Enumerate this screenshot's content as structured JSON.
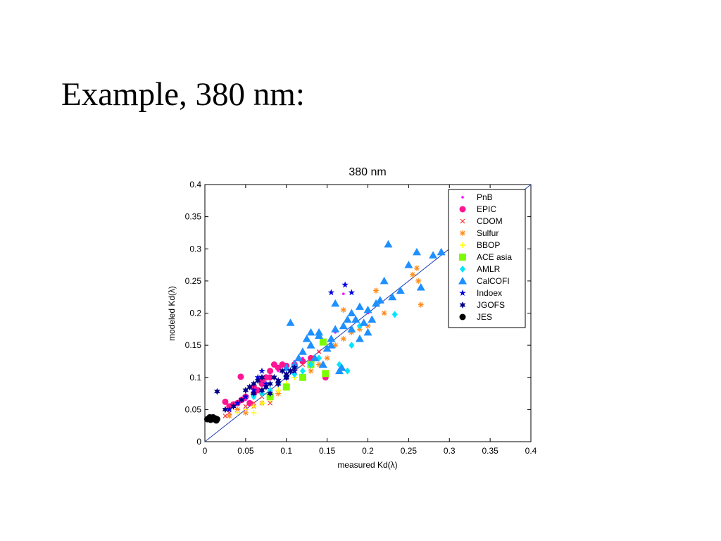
{
  "slide": {
    "title": "Example, 380 nm:"
  },
  "colors": {
    "PnB": "#ff00ff",
    "EPIC": "#ff1493",
    "CDOM": "#ff3030",
    "Sulfur": "#ff8c1a",
    "BBOP": "#ffff00",
    "ACE asia": "#7cfc00",
    "AMLR": "#00e5ff",
    "CalCOFI": "#1e90ff",
    "Indoex": "#0000e0",
    "JGOFS": "#00008b",
    "JES": "#000000",
    "one_to_one_line": "#1f3bb3"
  },
  "chart_data": {
    "type": "scatter",
    "title": "380 nm",
    "xlabel": "measured Kd(λ)",
    "ylabel": "modeled Kd(λ)",
    "xlim": [
      0,
      0.4
    ],
    "ylim": [
      0,
      0.4
    ],
    "xticks": [
      0,
      0.05,
      0.1,
      0.15,
      0.2,
      0.25,
      0.3,
      0.35,
      0.4
    ],
    "yticks": [
      0,
      0.05,
      0.1,
      0.15,
      0.2,
      0.25,
      0.3,
      0.35,
      0.4
    ],
    "xtick_labels": [
      "0",
      "0.05",
      "0.1",
      "0.15",
      "0.2",
      "0.25",
      "0.3",
      "0.35",
      "0.4"
    ],
    "ytick_labels": [
      "0",
      "0.05",
      "0.1",
      "0.15",
      "0.2",
      "0.25",
      "0.3",
      "0.35",
      "0.4"
    ],
    "grid": false,
    "legend_position": "top-right",
    "reference_line": {
      "x": [
        0,
        0.4
      ],
      "y": [
        0,
        0.4
      ]
    },
    "series": [
      {
        "name": "PnB",
        "marker": "dot",
        "color": "#ff00ff",
        "x": [
          0.04,
          0.05,
          0.06,
          0.07,
          0.08,
          0.09,
          0.1,
          0.11,
          0.12,
          0.14,
          0.16,
          0.18,
          0.2,
          0.22,
          0.05,
          0.07,
          0.09,
          0.13,
          0.15,
          0.17
        ],
        "y": [
          0.06,
          0.065,
          0.075,
          0.09,
          0.1,
          0.11,
          0.12,
          0.125,
          0.13,
          0.14,
          0.17,
          0.2,
          0.2,
          0.2,
          0.05,
          0.08,
          0.09,
          0.12,
          0.13,
          0.23
        ]
      },
      {
        "name": "EPIC",
        "marker": "circle",
        "color": "#ff1493",
        "x": [
          0.025,
          0.03,
          0.035,
          0.04,
          0.045,
          0.05,
          0.055,
          0.06,
          0.065,
          0.07,
          0.075,
          0.08,
          0.085,
          0.09,
          0.095,
          0.1,
          0.11,
          0.12,
          0.13,
          0.148,
          0.044,
          0.06,
          0.07,
          0.08
        ],
        "y": [
          0.062,
          0.055,
          0.058,
          0.06,
          0.065,
          0.07,
          0.06,
          0.075,
          0.08,
          0.09,
          0.1,
          0.11,
          0.12,
          0.115,
          0.12,
          0.118,
          0.12,
          0.125,
          0.13,
          0.1,
          0.101,
          0.085,
          0.095,
          0.1
        ]
      },
      {
        "name": "CDOM",
        "marker": "x",
        "color": "#ff3030",
        "x": [
          0.025,
          0.03,
          0.04,
          0.05,
          0.06,
          0.07,
          0.08,
          0.09,
          0.1,
          0.11,
          0.12,
          0.13,
          0.14,
          0.08
        ],
        "y": [
          0.04,
          0.045,
          0.05,
          0.055,
          0.06,
          0.07,
          0.08,
          0.09,
          0.1,
          0.11,
          0.12,
          0.13,
          0.14,
          0.06
        ]
      },
      {
        "name": "Sulfur",
        "marker": "asterisk",
        "color": "#ff8c1a",
        "x": [
          0.03,
          0.04,
          0.05,
          0.06,
          0.07,
          0.08,
          0.09,
          0.1,
          0.12,
          0.14,
          0.15,
          0.16,
          0.17,
          0.18,
          0.19,
          0.2,
          0.21,
          0.22,
          0.26,
          0.262,
          0.265,
          0.255,
          0.17,
          0.13
        ],
        "y": [
          0.04,
          0.05,
          0.045,
          0.055,
          0.06,
          0.07,
          0.075,
          0.085,
          0.1,
          0.12,
          0.13,
          0.15,
          0.16,
          0.17,
          0.175,
          0.18,
          0.235,
          0.2,
          0.27,
          0.25,
          0.213,
          0.26,
          0.205,
          0.11
        ]
      },
      {
        "name": "BBOP",
        "marker": "plus",
        "color": "#ffff00",
        "x": [
          0.04,
          0.05,
          0.06,
          0.07,
          0.08,
          0.09,
          0.1,
          0.11,
          0.12,
          0.13,
          0.14,
          0.06,
          0.08
        ],
        "y": [
          0.045,
          0.05,
          0.055,
          0.06,
          0.07,
          0.08,
          0.09,
          0.1,
          0.11,
          0.12,
          0.13,
          0.045,
          0.065
        ]
      },
      {
        "name": "ACE asia",
        "marker": "square",
        "color": "#7cfc00",
        "x": [
          0.08,
          0.1,
          0.12,
          0.13,
          0.145,
          0.148
        ],
        "y": [
          0.07,
          0.085,
          0.1,
          0.12,
          0.155,
          0.106
        ]
      },
      {
        "name": "AMLR",
        "marker": "diamond",
        "color": "#00e5ff",
        "x": [
          0.06,
          0.07,
          0.08,
          0.09,
          0.1,
          0.11,
          0.12,
          0.13,
          0.14,
          0.165,
          0.175,
          0.18,
          0.233,
          0.19
        ],
        "y": [
          0.07,
          0.075,
          0.08,
          0.09,
          0.1,
          0.105,
          0.11,
          0.12,
          0.13,
          0.12,
          0.11,
          0.15,
          0.198,
          0.18
        ]
      },
      {
        "name": "CalCOFI",
        "marker": "triangle",
        "color": "#1e90ff",
        "x": [
          0.1,
          0.11,
          0.115,
          0.12,
          0.125,
          0.13,
          0.135,
          0.14,
          0.145,
          0.15,
          0.155,
          0.16,
          0.165,
          0.17,
          0.175,
          0.18,
          0.185,
          0.19,
          0.195,
          0.2,
          0.205,
          0.21,
          0.215,
          0.225,
          0.23,
          0.24,
          0.25,
          0.26,
          0.265,
          0.28,
          0.29,
          0.105,
          0.13,
          0.14,
          0.155,
          0.16,
          0.168,
          0.18,
          0.19,
          0.2,
          0.22
        ],
        "y": [
          0.115,
          0.12,
          0.13,
          0.14,
          0.16,
          0.15,
          0.13,
          0.17,
          0.12,
          0.145,
          0.16,
          0.175,
          0.11,
          0.18,
          0.19,
          0.2,
          0.19,
          0.21,
          0.185,
          0.205,
          0.19,
          0.215,
          0.22,
          0.307,
          0.225,
          0.235,
          0.275,
          0.295,
          0.24,
          0.29,
          0.295,
          0.185,
          0.17,
          0.165,
          0.15,
          0.215,
          0.115,
          0.175,
          0.16,
          0.17,
          0.25
        ]
      },
      {
        "name": "Indoex",
        "marker": "star",
        "color": "#0000e0",
        "x": [
          0.03,
          0.04,
          0.05,
          0.06,
          0.065,
          0.07,
          0.075,
          0.155,
          0.172,
          0.18,
          0.1,
          0.11
        ],
        "y": [
          0.05,
          0.06,
          0.07,
          0.08,
          0.1,
          0.11,
          0.09,
          0.232,
          0.244,
          0.232,
          0.1,
          0.11
        ]
      },
      {
        "name": "JGOFS",
        "marker": "hexstar",
        "color": "#00008b",
        "x": [
          0.015,
          0.025,
          0.035,
          0.045,
          0.05,
          0.055,
          0.06,
          0.065,
          0.07,
          0.075,
          0.08,
          0.085,
          0.09,
          0.095,
          0.1,
          0.105,
          0.11,
          0.06,
          0.07,
          0.08,
          0.09,
          0.1
        ],
        "y": [
          0.078,
          0.05,
          0.055,
          0.065,
          0.08,
          0.085,
          0.09,
          0.095,
          0.1,
          0.085,
          0.09,
          0.1,
          0.095,
          0.11,
          0.105,
          0.11,
          0.115,
          0.075,
          0.08,
          0.075,
          0.09,
          0.1
        ]
      },
      {
        "name": "JES",
        "marker": "circle",
        "color": "#000000",
        "x": [
          0.003,
          0.005,
          0.007,
          0.009,
          0.011,
          0.013,
          0.015,
          0.006,
          0.01,
          0.014
        ],
        "y": [
          0.035,
          0.036,
          0.034,
          0.037,
          0.035,
          0.036,
          0.035,
          0.038,
          0.038,
          0.033
        ]
      }
    ]
  }
}
